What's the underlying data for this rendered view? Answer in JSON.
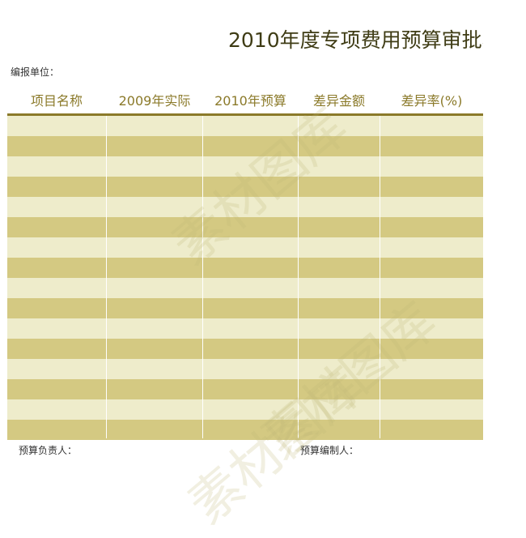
{
  "title": "2010年度专项费用预算审批表",
  "unit_label": "编报单位：",
  "columns": [
    "项目名称",
    "2009年实际",
    "2010年预算",
    "差异金额",
    "差异率(%)"
  ],
  "rows": [
    [
      "",
      "",
      "",
      "",
      ""
    ],
    [
      "",
      "",
      "",
      "",
      ""
    ],
    [
      "",
      "",
      "",
      "",
      ""
    ],
    [
      "",
      "",
      "",
      "",
      ""
    ],
    [
      "",
      "",
      "",
      "",
      ""
    ],
    [
      "",
      "",
      "",
      "",
      ""
    ],
    [
      "",
      "",
      "",
      "",
      ""
    ],
    [
      "",
      "",
      "",
      "",
      ""
    ],
    [
      "",
      "",
      "",
      "",
      ""
    ],
    [
      "",
      "",
      "",
      "",
      ""
    ],
    [
      "",
      "",
      "",
      "",
      ""
    ],
    [
      "",
      "",
      "",
      "",
      ""
    ],
    [
      "",
      "",
      "",
      "",
      ""
    ],
    [
      "",
      "",
      "",
      "",
      ""
    ],
    [
      "",
      "",
      "",
      "",
      ""
    ],
    [
      "",
      "",
      "",
      "",
      ""
    ]
  ],
  "footer": {
    "budget_owner": "预算负责人：",
    "budget_preparer": "预算编制人："
  },
  "watermark": "素材图库",
  "colors": {
    "header_text": "#8b7a2a",
    "row_light": "#eeeccb",
    "row_dark": "#d4c982",
    "title": "#3f3c15"
  }
}
